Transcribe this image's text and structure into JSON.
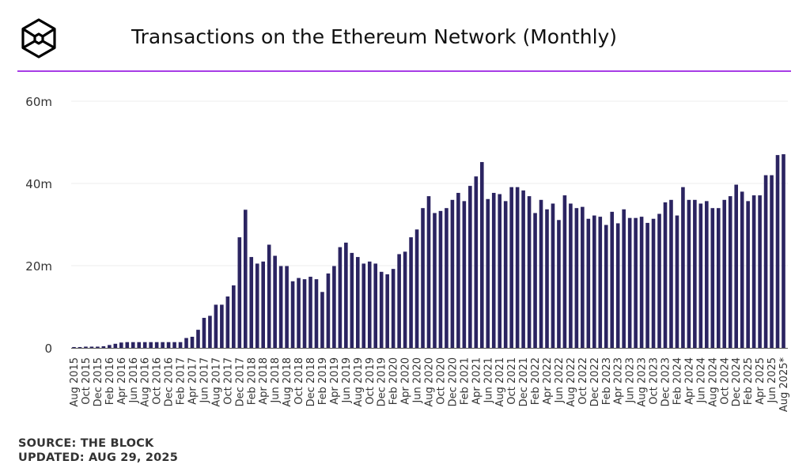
{
  "header": {
    "title": "Transactions on the Ethereum Network (Monthly)",
    "logo": "the-block-cube-logo"
  },
  "footer": {
    "source": "SOURCE: THE BLOCK",
    "updated": "UPDATED: AUG 29, 2025"
  },
  "colors": {
    "bar": "#2b2461",
    "accent_rule": "#a63de6",
    "grid": "#ececec"
  },
  "chart_data": {
    "type": "bar",
    "title": "Transactions on the Ethereum Network (Monthly)",
    "xlabel": "",
    "ylabel": "",
    "ylim": [
      0,
      60000000
    ],
    "yticks": [
      {
        "value": 0,
        "label": "0"
      },
      {
        "value": 20000000,
        "label": "20m"
      },
      {
        "value": 40000000,
        "label": "40m"
      },
      {
        "value": 60000000,
        "label": "60m"
      }
    ],
    "grid": "horizontal",
    "categories": [
      "Aug 2015",
      "Sep 2015",
      "Oct 2015",
      "Nov 2015",
      "Dec 2015",
      "Jan 2016",
      "Feb 2016",
      "Mar 2016",
      "Apr 2016",
      "May 2016",
      "Jun 2016",
      "Jul 2016",
      "Aug 2016",
      "Sep 2016",
      "Oct 2016",
      "Nov 2016",
      "Dec 2016",
      "Jan 2017",
      "Feb 2017",
      "Mar 2017",
      "Apr 2017",
      "May 2017",
      "Jun 2017",
      "Jul 2017",
      "Aug 2017",
      "Sep 2017",
      "Oct 2017",
      "Nov 2017",
      "Dec 2017",
      "Jan 2018",
      "Feb 2018",
      "Mar 2018",
      "Apr 2018",
      "May 2018",
      "Jun 2018",
      "Jul 2018",
      "Aug 2018",
      "Sep 2018",
      "Oct 2018",
      "Nov 2018",
      "Dec 2018",
      "Jan 2019",
      "Feb 2019",
      "Mar 2019",
      "Apr 2019",
      "May 2019",
      "Jun 2019",
      "Jul 2019",
      "Aug 2019",
      "Sep 2019",
      "Oct 2019",
      "Nov 2019",
      "Dec 2019",
      "Jan 2020",
      "Feb 2020",
      "Mar 2020",
      "Apr 2020",
      "May 2020",
      "Jun 2020",
      "Jul 2020",
      "Aug 2020",
      "Sep 2020",
      "Oct 2020",
      "Nov 2020",
      "Dec 2020",
      "Jan 2021",
      "Feb 2021",
      "Mar 2021",
      "Apr 2021",
      "May 2021",
      "Jun 2021",
      "Jul 2021",
      "Aug 2021",
      "Sep 2021",
      "Oct 2021",
      "Nov 2021",
      "Dec 2021",
      "Jan 2022",
      "Feb 2022",
      "Mar 2022",
      "Apr 2022",
      "May 2022",
      "Jun 2022",
      "Jul 2022",
      "Aug 2022",
      "Sep 2022",
      "Oct 2022",
      "Nov 2022",
      "Dec 2022",
      "Jan 2023",
      "Feb 2023",
      "Mar 2023",
      "Apr 2023",
      "May 2023",
      "Jun 2023",
      "Jul 2023",
      "Aug 2023",
      "Sep 2023",
      "Oct 2023",
      "Nov 2023",
      "Dec 2023",
      "Jan 2024",
      "Feb 2024",
      "Mar 2024",
      "Apr 2024",
      "May 2024",
      "Jun 2024",
      "Jul 2024",
      "Aug 2024",
      "Sep 2024",
      "Oct 2024",
      "Nov 2024",
      "Dec 2024",
      "Jan 2025",
      "Feb 2025",
      "Mar 2025",
      "Apr 2025",
      "May 2025",
      "Jun 2025",
      "Jul 2025",
      "Aug 2025*"
    ],
    "tick_labels_every": 2,
    "values_millions": [
      0.2,
      0.2,
      0.3,
      0.3,
      0.3,
      0.4,
      0.7,
      1.0,
      1.3,
      1.4,
      1.4,
      1.4,
      1.4,
      1.4,
      1.4,
      1.4,
      1.4,
      1.4,
      1.4,
      2.4,
      2.7,
      4.4,
      7.3,
      7.8,
      10.5,
      10.5,
      12.5,
      15.2,
      26.9,
      33.6,
      22.1,
      20.5,
      21.0,
      25.1,
      22.4,
      19.9,
      19.9,
      16.2,
      17.0,
      16.7,
      17.3,
      16.7,
      13.6,
      18.1,
      19.9,
      24.5,
      25.6,
      23.1,
      22.1,
      20.5,
      21.0,
      20.5,
      18.5,
      17.9,
      19.2,
      22.8,
      23.4,
      26.9,
      28.8,
      34.0,
      36.9,
      32.8,
      33.3,
      34.0,
      36.0,
      37.7,
      35.7,
      39.4,
      41.7,
      45.2,
      36.2,
      37.7,
      37.4,
      35.7,
      39.1,
      39.1,
      38.3,
      36.9,
      32.8,
      36.0,
      33.7,
      35.1,
      31.1,
      37.1,
      35.1,
      34.0,
      34.3,
      31.4,
      32.2,
      31.9,
      29.9,
      33.1,
      30.3,
      33.7,
      31.6,
      31.6,
      31.9,
      30.4,
      31.4,
      32.6,
      35.4,
      36.0,
      32.2,
      39.1,
      36.0,
      36.0,
      35.1,
      35.7,
      34.0,
      34.0,
      36.0,
      36.9,
      39.7,
      38.0,
      35.7,
      37.1,
      37.1,
      42.0,
      42.0,
      46.9,
      47.1
    ]
  }
}
